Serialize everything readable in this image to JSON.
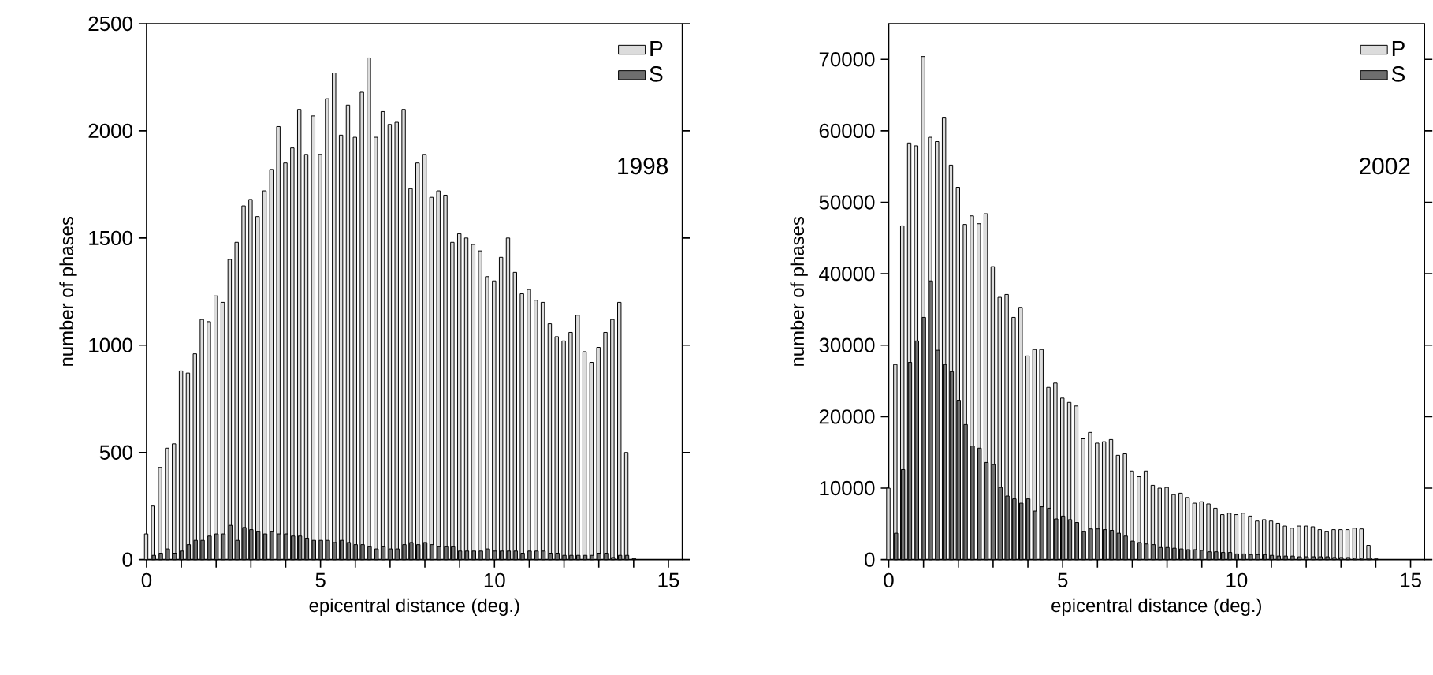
{
  "chart_data": [
    {
      "type": "histogram",
      "xlabel": "epicentral distance (deg.)",
      "ylabel": "number of phases",
      "bins": [
        0,
        0.2,
        0.4,
        0.6,
        0.8,
        1.0,
        1.2,
        1.4,
        1.6,
        1.8,
        2.0,
        2.2,
        2.4,
        2.6,
        2.8,
        3.0,
        3.2,
        3.4,
        3.6,
        3.8,
        4.0,
        4.2,
        4.4,
        4.6,
        4.8,
        5.0,
        5.2,
        5.4,
        5.6,
        5.8,
        6.0,
        6.2,
        6.4,
        6.6,
        6.8,
        7.0,
        7.2,
        7.4,
        7.6,
        7.8,
        8.0,
        8.2,
        8.4,
        8.6,
        8.8,
        9.0,
        9.2,
        9.4,
        9.6,
        9.8,
        10.0,
        10.2,
        10.4,
        10.6,
        10.8,
        11.0,
        11.2,
        11.4,
        11.6,
        11.8,
        12.0,
        12.2,
        12.4,
        12.6,
        12.8,
        13.0,
        13.2,
        13.4,
        13.6,
        13.8,
        14.0
      ],
      "series": [
        {
          "name": "P",
          "color": "#dcdcdc",
          "values": [
            120,
            250,
            430,
            520,
            540,
            880,
            870,
            960,
            1120,
            1110,
            1230,
            1200,
            1400,
            1480,
            1650,
            1680,
            1600,
            1720,
            1820,
            2020,
            1850,
            1920,
            2100,
            1890,
            2070,
            1890,
            2150,
            2270,
            1980,
            2120,
            1970,
            2180,
            2340,
            1970,
            2090,
            2030,
            2040,
            2100,
            1730,
            1850,
            1890,
            1690,
            1720,
            1700,
            1480,
            1520,
            1500,
            1470,
            1440,
            1320,
            1300,
            1410,
            1500,
            1340,
            1240,
            1260,
            1210,
            1200,
            1100,
            1040,
            1020,
            1060,
            1140,
            970,
            920,
            990,
            1060,
            1120,
            1200,
            500
          ]
        },
        {
          "name": "S",
          "color": "#6e6e6e",
          "values": [
            20,
            30,
            50,
            30,
            40,
            70,
            90,
            90,
            110,
            120,
            120,
            160,
            90,
            150,
            140,
            130,
            120,
            130,
            120,
            120,
            110,
            110,
            100,
            90,
            90,
            90,
            80,
            90,
            80,
            70,
            70,
            60,
            50,
            60,
            50,
            50,
            70,
            80,
            70,
            80,
            70,
            60,
            60,
            60,
            40,
            40,
            40,
            40,
            50,
            40,
            40,
            40,
            40,
            30,
            40,
            40,
            40,
            30,
            30,
            20,
            20,
            20,
            20,
            20,
            30,
            30,
            10,
            20,
            20,
            5
          ]
        }
      ],
      "xlim": [
        0,
        15.4
      ],
      "ylim": [
        0,
        2500
      ],
      "xticks": [
        0,
        {
          "value": 1,
          "label": null
        },
        {
          "value": 2,
          "label": null
        },
        {
          "value": 3,
          "label": null
        },
        {
          "value": 4,
          "label": null
        },
        5,
        {
          "value": 6,
          "label": null
        },
        {
          "value": 7,
          "label": null
        },
        {
          "value": 8,
          "label": null
        },
        {
          "value": 9,
          "label": null
        },
        10,
        {
          "value": 11,
          "label": null
        },
        {
          "value": 12,
          "label": null
        },
        {
          "value": 13,
          "label": null
        },
        {
          "value": 14,
          "label": null
        },
        15
      ],
      "yticks": [
        0,
        500,
        1000,
        1500,
        2000,
        2500
      ],
      "legend": "top right",
      "grid": false,
      "annotations": [
        "1998"
      ]
    },
    {
      "type": "histogram",
      "xlabel": "epicentral distance (deg.)",
      "ylabel": "number of phases",
      "bins": [
        0,
        0.2,
        0.4,
        0.6,
        0.8,
        1.0,
        1.2,
        1.4,
        1.6,
        1.8,
        2.0,
        2.2,
        2.4,
        2.6,
        2.8,
        3.0,
        3.2,
        3.4,
        3.6,
        3.8,
        4.0,
        4.2,
        4.4,
        4.6,
        4.8,
        5.0,
        5.2,
        5.4,
        5.6,
        5.8,
        6.0,
        6.2,
        6.4,
        6.6,
        6.8,
        7.0,
        7.2,
        7.4,
        7.6,
        7.8,
        8.0,
        8.2,
        8.4,
        8.6,
        8.8,
        9.0,
        9.2,
        9.4,
        9.6,
        9.8,
        10.0,
        10.2,
        10.4,
        10.6,
        10.8,
        11.0,
        11.2,
        11.4,
        11.6,
        11.8,
        12.0,
        12.2,
        12.4,
        12.6,
        12.8,
        13.0,
        13.2,
        13.4,
        13.6,
        13.8,
        14.0
      ],
      "series": [
        {
          "name": "P",
          "color": "#dcdcdc",
          "values": [
            10000,
            27300,
            46700,
            58300,
            57900,
            70400,
            59100,
            58500,
            61800,
            55200,
            52100,
            46900,
            48100,
            47000,
            48400,
            41000,
            36700,
            37100,
            33900,
            35300,
            28500,
            29400,
            29400,
            24100,
            24700,
            22600,
            22000,
            21500,
            16900,
            17800,
            16300,
            16500,
            16800,
            14600,
            14800,
            12400,
            11600,
            12400,
            10400,
            10000,
            10100,
            9100,
            9300,
            8700,
            7900,
            8100,
            7800,
            7200,
            6300,
            6500,
            6300,
            6500,
            6100,
            5400,
            5600,
            5400,
            5100,
            4700,
            4400,
            4700,
            4700,
            4600,
            4200,
            3900,
            4200,
            4200,
            4200,
            4400,
            4300,
            2000
          ]
        },
        {
          "name": "S",
          "color": "#6e6e6e",
          "values": [
            3700,
            12600,
            27600,
            30600,
            33900,
            39000,
            29300,
            27300,
            26300,
            22300,
            18900,
            15900,
            15600,
            13600,
            13300,
            10100,
            8900,
            8500,
            7900,
            8500,
            6800,
            7400,
            7200,
            5700,
            6100,
            5600,
            5200,
            3900,
            4300,
            4300,
            4200,
            4100,
            3700,
            3300,
            2600,
            2400,
            2200,
            2100,
            1700,
            1700,
            1600,
            1500,
            1400,
            1400,
            1300,
            1100,
            1100,
            1000,
            1000,
            800,
            800,
            700,
            700,
            700,
            600,
            500,
            500,
            500,
            400,
            400,
            400,
            400,
            400,
            300,
            300,
            300,
            200,
            200,
            200,
            100
          ]
        }
      ],
      "xlim": [
        0,
        15.4
      ],
      "ylim": [
        0,
        75000
      ],
      "xticks": [
        0,
        {
          "value": 1,
          "label": null
        },
        {
          "value": 2,
          "label": null
        },
        {
          "value": 3,
          "label": null
        },
        {
          "value": 4,
          "label": null
        },
        5,
        {
          "value": 6,
          "label": null
        },
        {
          "value": 7,
          "label": null
        },
        {
          "value": 8,
          "label": null
        },
        {
          "value": 9,
          "label": null
        },
        10,
        {
          "value": 11,
          "label": null
        },
        {
          "value": 12,
          "label": null
        },
        {
          "value": 13,
          "label": null
        },
        {
          "value": 14,
          "label": null
        },
        15
      ],
      "yticks": [
        0,
        10000,
        20000,
        30000,
        40000,
        50000,
        60000,
        70000
      ],
      "legend": "top right",
      "grid": false,
      "annotations": [
        "2002"
      ]
    }
  ]
}
